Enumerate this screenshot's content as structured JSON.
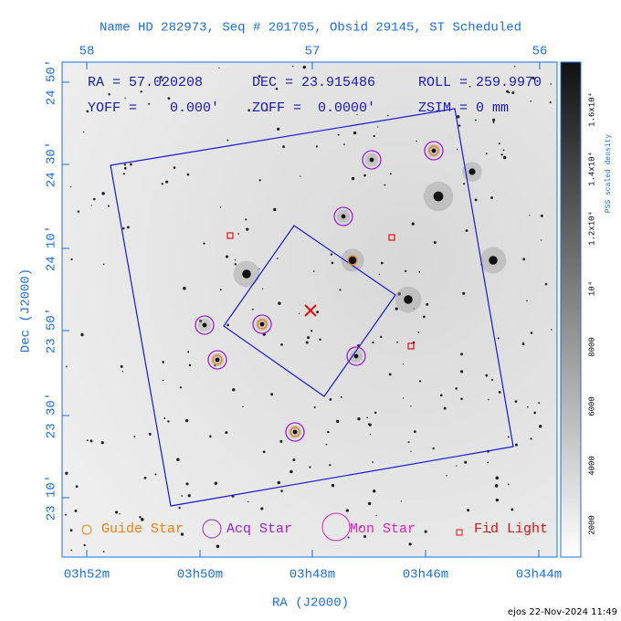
{
  "title": "Name HD 282973, Seq # 201705, Obsid 29145, ST Scheduled",
  "info": [
    "RA = 57.020208",
    "DEC = 23.915486",
    "ROLL = 259.9970",
    "YOFF =    0.000'",
    "ZOFF =  0.0000'",
    "ZSIM = 0 mm"
  ],
  "top_ticks": [
    "58",
    "57",
    "56"
  ],
  "bottom_ticks": [
    "03h52m",
    "03h50m",
    "03h48m",
    "03h46m",
    "03h44m"
  ],
  "left_ticks": [
    "24 50'",
    "24 30'",
    "24 10'",
    "23 50'",
    "23 30'",
    "23 10'"
  ],
  "x_label": "RA (J2000)",
  "y_label": "Dec (J2000)",
  "colorbar": {
    "label": "PSS scaled density",
    "ticks": [
      "2000",
      "4000",
      "6000",
      "8000",
      "10⁴",
      "1.2x10⁴",
      "1.4x10⁴",
      "1.6x10⁴"
    ]
  },
  "legend": [
    "Guide Star",
    "Acq Star",
    "Mon Star",
    "Fid Light"
  ],
  "footer": "ejos 22-Nov-2024 11:49"
}
